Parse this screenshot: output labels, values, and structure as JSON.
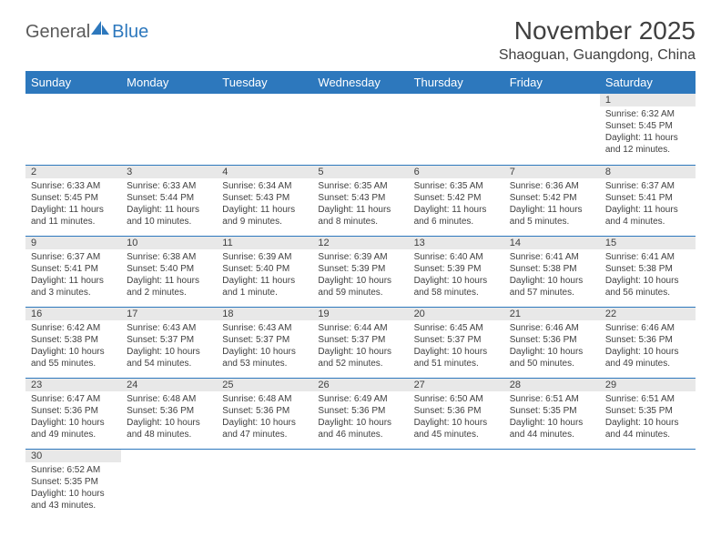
{
  "logo": {
    "part1": "General",
    "part2": "Blue"
  },
  "title": "November 2025",
  "location": "Shaoguan, Guangdong, China",
  "colors": {
    "header_bg": "#2d78bd",
    "header_text": "#ffffff",
    "daynum_bg": "#e8e8e8",
    "border": "#2d78bd",
    "body_text": "#404040",
    "logo_gray": "#5a5a5a",
    "logo_blue": "#2d78bd"
  },
  "weekdays": [
    "Sunday",
    "Monday",
    "Tuesday",
    "Wednesday",
    "Thursday",
    "Friday",
    "Saturday"
  ],
  "weeks": [
    [
      null,
      null,
      null,
      null,
      null,
      null,
      {
        "n": "1",
        "sr": "Sunrise: 6:32 AM",
        "ss": "Sunset: 5:45 PM",
        "dl": "Daylight: 11 hours and 12 minutes."
      }
    ],
    [
      {
        "n": "2",
        "sr": "Sunrise: 6:33 AM",
        "ss": "Sunset: 5:45 PM",
        "dl": "Daylight: 11 hours and 11 minutes."
      },
      {
        "n": "3",
        "sr": "Sunrise: 6:33 AM",
        "ss": "Sunset: 5:44 PM",
        "dl": "Daylight: 11 hours and 10 minutes."
      },
      {
        "n": "4",
        "sr": "Sunrise: 6:34 AM",
        "ss": "Sunset: 5:43 PM",
        "dl": "Daylight: 11 hours and 9 minutes."
      },
      {
        "n": "5",
        "sr": "Sunrise: 6:35 AM",
        "ss": "Sunset: 5:43 PM",
        "dl": "Daylight: 11 hours and 8 minutes."
      },
      {
        "n": "6",
        "sr": "Sunrise: 6:35 AM",
        "ss": "Sunset: 5:42 PM",
        "dl": "Daylight: 11 hours and 6 minutes."
      },
      {
        "n": "7",
        "sr": "Sunrise: 6:36 AM",
        "ss": "Sunset: 5:42 PM",
        "dl": "Daylight: 11 hours and 5 minutes."
      },
      {
        "n": "8",
        "sr": "Sunrise: 6:37 AM",
        "ss": "Sunset: 5:41 PM",
        "dl": "Daylight: 11 hours and 4 minutes."
      }
    ],
    [
      {
        "n": "9",
        "sr": "Sunrise: 6:37 AM",
        "ss": "Sunset: 5:41 PM",
        "dl": "Daylight: 11 hours and 3 minutes."
      },
      {
        "n": "10",
        "sr": "Sunrise: 6:38 AM",
        "ss": "Sunset: 5:40 PM",
        "dl": "Daylight: 11 hours and 2 minutes."
      },
      {
        "n": "11",
        "sr": "Sunrise: 6:39 AM",
        "ss": "Sunset: 5:40 PM",
        "dl": "Daylight: 11 hours and 1 minute."
      },
      {
        "n": "12",
        "sr": "Sunrise: 6:39 AM",
        "ss": "Sunset: 5:39 PM",
        "dl": "Daylight: 10 hours and 59 minutes."
      },
      {
        "n": "13",
        "sr": "Sunrise: 6:40 AM",
        "ss": "Sunset: 5:39 PM",
        "dl": "Daylight: 10 hours and 58 minutes."
      },
      {
        "n": "14",
        "sr": "Sunrise: 6:41 AM",
        "ss": "Sunset: 5:38 PM",
        "dl": "Daylight: 10 hours and 57 minutes."
      },
      {
        "n": "15",
        "sr": "Sunrise: 6:41 AM",
        "ss": "Sunset: 5:38 PM",
        "dl": "Daylight: 10 hours and 56 minutes."
      }
    ],
    [
      {
        "n": "16",
        "sr": "Sunrise: 6:42 AM",
        "ss": "Sunset: 5:38 PM",
        "dl": "Daylight: 10 hours and 55 minutes."
      },
      {
        "n": "17",
        "sr": "Sunrise: 6:43 AM",
        "ss": "Sunset: 5:37 PM",
        "dl": "Daylight: 10 hours and 54 minutes."
      },
      {
        "n": "18",
        "sr": "Sunrise: 6:43 AM",
        "ss": "Sunset: 5:37 PM",
        "dl": "Daylight: 10 hours and 53 minutes."
      },
      {
        "n": "19",
        "sr": "Sunrise: 6:44 AM",
        "ss": "Sunset: 5:37 PM",
        "dl": "Daylight: 10 hours and 52 minutes."
      },
      {
        "n": "20",
        "sr": "Sunrise: 6:45 AM",
        "ss": "Sunset: 5:37 PM",
        "dl": "Daylight: 10 hours and 51 minutes."
      },
      {
        "n": "21",
        "sr": "Sunrise: 6:46 AM",
        "ss": "Sunset: 5:36 PM",
        "dl": "Daylight: 10 hours and 50 minutes."
      },
      {
        "n": "22",
        "sr": "Sunrise: 6:46 AM",
        "ss": "Sunset: 5:36 PM",
        "dl": "Daylight: 10 hours and 49 minutes."
      }
    ],
    [
      {
        "n": "23",
        "sr": "Sunrise: 6:47 AM",
        "ss": "Sunset: 5:36 PM",
        "dl": "Daylight: 10 hours and 49 minutes."
      },
      {
        "n": "24",
        "sr": "Sunrise: 6:48 AM",
        "ss": "Sunset: 5:36 PM",
        "dl": "Daylight: 10 hours and 48 minutes."
      },
      {
        "n": "25",
        "sr": "Sunrise: 6:48 AM",
        "ss": "Sunset: 5:36 PM",
        "dl": "Daylight: 10 hours and 47 minutes."
      },
      {
        "n": "26",
        "sr": "Sunrise: 6:49 AM",
        "ss": "Sunset: 5:36 PM",
        "dl": "Daylight: 10 hours and 46 minutes."
      },
      {
        "n": "27",
        "sr": "Sunrise: 6:50 AM",
        "ss": "Sunset: 5:36 PM",
        "dl": "Daylight: 10 hours and 45 minutes."
      },
      {
        "n": "28",
        "sr": "Sunrise: 6:51 AM",
        "ss": "Sunset: 5:35 PM",
        "dl": "Daylight: 10 hours and 44 minutes."
      },
      {
        "n": "29",
        "sr": "Sunrise: 6:51 AM",
        "ss": "Sunset: 5:35 PM",
        "dl": "Daylight: 10 hours and 44 minutes."
      }
    ],
    [
      {
        "n": "30",
        "sr": "Sunrise: 6:52 AM",
        "ss": "Sunset: 5:35 PM",
        "dl": "Daylight: 10 hours and 43 minutes."
      },
      null,
      null,
      null,
      null,
      null,
      null
    ]
  ]
}
